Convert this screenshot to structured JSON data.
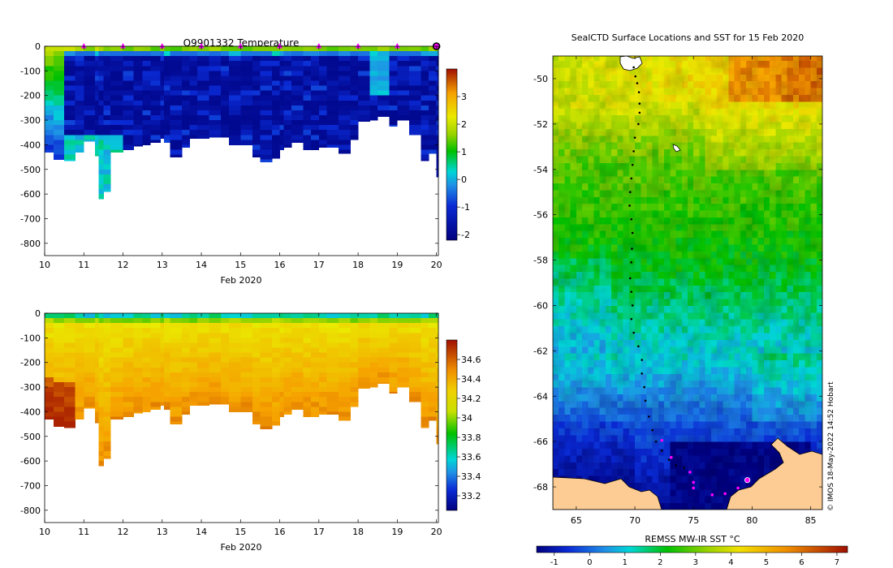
{
  "chart_data": [
    {
      "id": "temperature",
      "type": "heatmap",
      "title": "Q9901332  Temperature",
      "xlabel": "Feb 2020",
      "ylabel": "",
      "x_ticks": [
        "10",
        "11",
        "12",
        "13",
        "14",
        "15",
        "16",
        "17",
        "18",
        "19",
        "20"
      ],
      "y_ticks": [
        "0",
        "-100",
        "-200",
        "-300",
        "-400",
        "-500",
        "-600",
        "-700",
        "-800"
      ],
      "xlim": [
        10,
        20.05
      ],
      "ylim": [
        -850,
        0
      ],
      "colorbar": {
        "ticks": [
          "3",
          "2",
          "1",
          "0",
          "-1",
          "-2"
        ],
        "range": [
          -2.2,
          4
        ]
      },
      "profile_markers_x": [
        11,
        12,
        13,
        14,
        15,
        16,
        17,
        18,
        19
      ],
      "end_marker_x": 20,
      "profile_depth": {
        "x": [
          10,
          10.23,
          10.5,
          10.78,
          11,
          11.28,
          11.38,
          11.5,
          11.68,
          12,
          12.27,
          12.5,
          12.7,
          12.95,
          13.05,
          13.2,
          13.5,
          13.7,
          13.9,
          14.2,
          14.5,
          14.7,
          15,
          15.3,
          15.5,
          15.8,
          16,
          16.1,
          16.3,
          16.6,
          16.8,
          17,
          17.2,
          17.5,
          17.8,
          18,
          18.3,
          18.5,
          18.8,
          19,
          19.3,
          19.6,
          19.8,
          20
        ],
        "depth": [
          430,
          460,
          465,
          430,
          385,
          445,
          620,
          590,
          430,
          420,
          405,
          400,
          390,
          375,
          390,
          450,
          410,
          375,
          375,
          370,
          370,
          400,
          400,
          450,
          470,
          455,
          420,
          410,
          390,
          420,
          420,
          410,
          410,
          435,
          380,
          305,
          300,
          285,
          325,
          300,
          360,
          465,
          435,
          530
        ]
      },
      "surface_value": 1.6,
      "deep_value": -1.9
    },
    {
      "id": "salinity",
      "type": "heatmap",
      "title": "",
      "xlabel": "Feb 2020",
      "ylabel": "",
      "x_ticks": [
        "10",
        "11",
        "12",
        "13",
        "14",
        "15",
        "16",
        "17",
        "18",
        "19",
        "20"
      ],
      "y_ticks": [
        "0",
        "-100",
        "-200",
        "-300",
        "-400",
        "-500",
        "-600",
        "-700",
        "-800"
      ],
      "xlim": [
        10,
        20.05
      ],
      "ylim": [
        -850,
        0
      ],
      "colorbar": {
        "ticks": [
          "34.6",
          "34.4",
          "34.2",
          "34",
          "33.8",
          "33.6",
          "33.4",
          "33.2"
        ],
        "range": [
          33.05,
          34.8
        ]
      },
      "surface_value": 33.8,
      "deep_value": 34.62
    },
    {
      "id": "sst-map",
      "type": "heatmap",
      "title": "SealCTD Surface Locations and SST for 15 Feb 2020",
      "xlabel": "",
      "ylabel": "",
      "x_ticks": [
        "65",
        "70",
        "75",
        "80",
        "85"
      ],
      "y_ticks": [
        "-50",
        "-52",
        "-54",
        "-56",
        "-58",
        "-60",
        "-62",
        "-64",
        "-66",
        "-68"
      ],
      "xlim": [
        63,
        86
      ],
      "ylim": [
        -69,
        -49
      ],
      "colorbar": {
        "label": "REMSS MW-IR SST °C",
        "ticks": [
          "-1",
          "0",
          "1",
          "2",
          "3",
          "4",
          "5",
          "6",
          "7"
        ],
        "range": [
          -1.5,
          7.3
        ]
      },
      "track_black": [
        [
          69.9,
          -49.5
        ],
        [
          70.05,
          -49.9
        ],
        [
          70.2,
          -50.2
        ],
        [
          70.35,
          -50.6
        ],
        [
          70.4,
          -51.1
        ],
        [
          70.4,
          -51.5
        ],
        [
          70.3,
          -52
        ],
        [
          70.0,
          -52.6
        ],
        [
          69.9,
          -53.2
        ],
        [
          69.8,
          -53.8
        ],
        [
          69.7,
          -54.4
        ],
        [
          69.6,
          -55
        ],
        [
          69.55,
          -55.6
        ],
        [
          69.7,
          -56.2
        ],
        [
          69.8,
          -56.8
        ],
        [
          69.75,
          -57.5
        ],
        [
          69.7,
          -58.1
        ],
        [
          69.6,
          -58.8
        ],
        [
          69.7,
          -59.4
        ],
        [
          69.8,
          -60
        ],
        [
          69.7,
          -60.6
        ],
        [
          69.9,
          -61.2
        ],
        [
          70.3,
          -61.8
        ],
        [
          70.6,
          -62.4
        ],
        [
          70.6,
          -63
        ],
        [
          70.8,
          -63.6
        ],
        [
          70.9,
          -64.2
        ],
        [
          71.2,
          -64.9
        ],
        [
          71.5,
          -65.5
        ],
        [
          71.8,
          -66.0
        ],
        [
          72.3,
          -66.4
        ],
        [
          72.9,
          -66.8
        ],
        [
          73.5,
          -67.05
        ],
        [
          74.2,
          -67.15
        ]
      ],
      "track_magenta": [
        [
          72.3,
          -65.95
        ],
        [
          73.1,
          -66.7
        ],
        [
          74.7,
          -67.35
        ],
        [
          75.0,
          -67.8
        ],
        [
          75.0,
          -68.05
        ],
        [
          76.6,
          -68.35
        ],
        [
          77.7,
          -68.3
        ],
        [
          78.8,
          -68.05
        ],
        [
          79.6,
          -67.7
        ]
      ],
      "current_location": [
        79.6,
        -67.7
      ],
      "coast_label": "",
      "watermark": "© IMOS 18-May-2022 14:52 Hobart"
    }
  ],
  "colors": {
    "magenta": "#ff00ff",
    "land": "#fccc94",
    "axis": "#000000"
  }
}
